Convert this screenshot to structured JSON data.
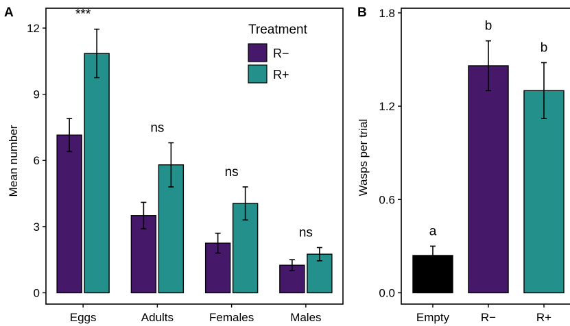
{
  "chart_data": [
    {
      "panel_label": "A",
      "type": "bar",
      "ylabel": "Mean number",
      "ylim": [
        0,
        12.9
      ],
      "yticks": [
        0,
        3,
        6,
        9,
        12
      ],
      "categories": [
        "Eggs",
        "Adults",
        "Females",
        "Males"
      ],
      "series": [
        {
          "name": "R−",
          "color": "#46186a",
          "values": [
            7.15,
            3.5,
            2.25,
            1.25
          ],
          "errors": [
            0.75,
            0.6,
            0.45,
            0.25
          ]
        },
        {
          "name": "R+",
          "color": "#23908c",
          "values": [
            10.85,
            5.8,
            4.05,
            1.75
          ],
          "errors": [
            1.1,
            1.0,
            0.75,
            0.3
          ]
        }
      ],
      "annotations": [
        "***",
        "ns",
        "ns",
        "ns"
      ],
      "legend": {
        "title": "Treatment",
        "placement": "top-right"
      }
    },
    {
      "panel_label": "B",
      "type": "bar",
      "ylabel": "Wasps per trial",
      "ylim": [
        0,
        1.83
      ],
      "yticks": [
        0.0,
        0.6,
        1.2,
        1.8
      ],
      "ytick_labels": [
        "0.0",
        "0.6",
        "1.2",
        "1.8"
      ],
      "categories": [
        "Empty",
        "R−",
        "R+"
      ],
      "values": [
        0.24,
        1.46,
        1.3
      ],
      "errors": [
        0.06,
        0.16,
        0.18
      ],
      "colors": [
        "#000000",
        "#46186a",
        "#23908c"
      ],
      "annotations": [
        "a",
        "b",
        "b"
      ]
    }
  ]
}
